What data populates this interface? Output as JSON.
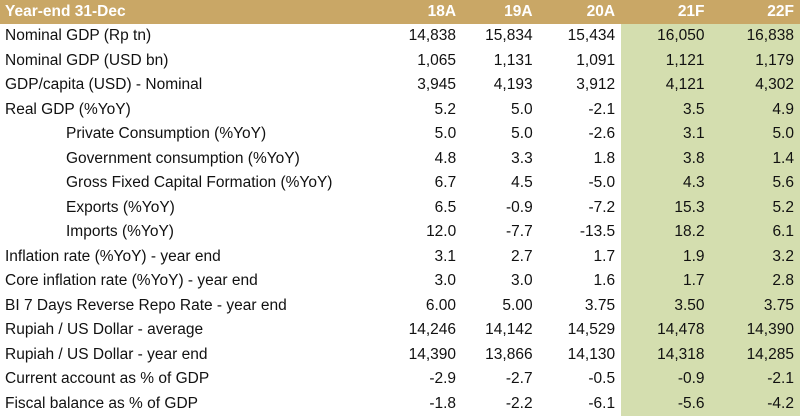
{
  "header": {
    "label": "Year-end 31-Dec",
    "cols": [
      "18A",
      "19A",
      "20A",
      "21F",
      "22F"
    ]
  },
  "colors": {
    "header_bg": "#c9a766",
    "forecast_bg": "#d4deaf"
  },
  "rows": [
    {
      "label": "Nominal GDP (Rp tn)",
      "indent": false,
      "values": [
        "14,838",
        "15,834",
        "15,434",
        "16,050",
        "16,838"
      ]
    },
    {
      "label": "Nominal GDP (USD bn)",
      "indent": false,
      "values": [
        "1,065",
        "1,131",
        "1,091",
        "1,121",
        "1,179"
      ]
    },
    {
      "label": "GDP/capita (USD) - Nominal",
      "indent": false,
      "values": [
        "3,945",
        "4,193",
        "3,912",
        "4,121",
        "4,302"
      ]
    },
    {
      "label": "Real GDP (%YoY)",
      "indent": false,
      "values": [
        "5.2",
        "5.0",
        "-2.1",
        "3.5",
        "4.9"
      ]
    },
    {
      "label": "Private Consumption (%YoY)",
      "indent": true,
      "values": [
        "5.0",
        "5.0",
        "-2.6",
        "3.1",
        "5.0"
      ]
    },
    {
      "label": "Government consumption (%YoY)",
      "indent": true,
      "values": [
        "4.8",
        "3.3",
        "1.8",
        "3.8",
        "1.4"
      ]
    },
    {
      "label": "Gross Fixed Capital Formation (%YoY)",
      "indent": true,
      "values": [
        "6.7",
        "4.5",
        "-5.0",
        "4.3",
        "5.6"
      ]
    },
    {
      "label": "Exports (%YoY)",
      "indent": true,
      "values": [
        "6.5",
        "-0.9",
        "-7.2",
        "15.3",
        "5.2"
      ]
    },
    {
      "label": "Imports (%YoY)",
      "indent": true,
      "values": [
        "12.0",
        "-7.7",
        "-13.5",
        "18.2",
        "6.1"
      ]
    },
    {
      "label": "Inflation rate (%YoY) - year end",
      "indent": false,
      "values": [
        "3.1",
        "2.7",
        "1.7",
        "1.9",
        "3.2"
      ]
    },
    {
      "label": "Core inflation rate (%YoY) - year end",
      "indent": false,
      "values": [
        "3.0",
        "3.0",
        "1.6",
        "1.7",
        "2.8"
      ]
    },
    {
      "label": "BI 7 Days Reverse Repo Rate - year end",
      "indent": false,
      "values": [
        "6.00",
        "5.00",
        "3.75",
        "3.50",
        "3.75"
      ]
    },
    {
      "label": "Rupiah / US Dollar - average",
      "indent": false,
      "values": [
        "14,246",
        "14,142",
        "14,529",
        "14,478",
        "14,390"
      ]
    },
    {
      "label": "Rupiah / US Dollar - year end",
      "indent": false,
      "values": [
        "14,390",
        "13,866",
        "14,130",
        "14,318",
        "14,285"
      ]
    },
    {
      "label": "Current account as % of GDP",
      "indent": false,
      "values": [
        "-2.9",
        "-2.7",
        "-0.5",
        "-0.9",
        "-2.1"
      ]
    },
    {
      "label": "Fiscal balance as % of GDP",
      "indent": false,
      "values": [
        "-1.8",
        "-2.2",
        "-6.1",
        "-5.6",
        "-4.2"
      ]
    }
  ]
}
